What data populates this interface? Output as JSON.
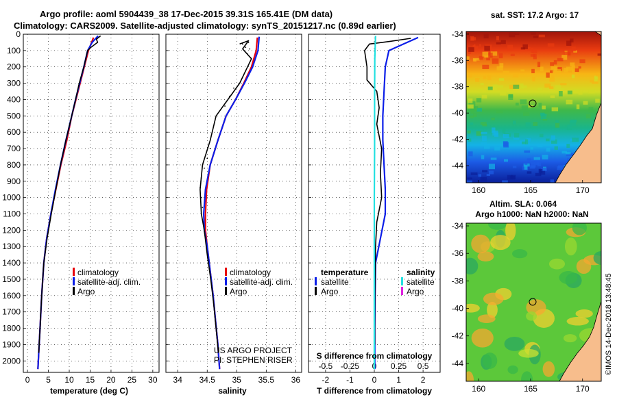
{
  "header": {
    "line1": "Argo profile: aoml 5904439_38 17-Dec-2015 39.31S 165.41E (DM data)",
    "line2": "Climatology: CARS2009. Satellite-adjusted climatology: synTS_20151217.nc (0.89d earlier)"
  },
  "credit": {
    "project": "US ARGO PROJECT",
    "pi": "PI: STEPHEN RISER",
    "imos": "©IMOS 14-Dec-2018 13:48:45"
  },
  "colors": {
    "climatology": "#e8000b",
    "satellite": "#0b1ee8",
    "argo": "#000000",
    "sat_salinity": "#22e0e0",
    "argo_salinity": "#e020e0"
  },
  "chart_data": [
    {
      "id": "temperature",
      "type": "line",
      "xlabel": "temperature (deg C)",
      "ylabel": "",
      "xlim": [
        -1,
        31.5
      ],
      "ylim": [
        2070,
        0
      ],
      "xticks": [
        0,
        5,
        10,
        15,
        20,
        25,
        30
      ],
      "yticks": [
        0,
        100,
        200,
        300,
        400,
        500,
        600,
        700,
        800,
        900,
        1000,
        1100,
        1200,
        1300,
        1400,
        1500,
        1600,
        1700,
        1800,
        1900,
        2000
      ],
      "legend": [
        "climatology",
        "satellite-adj. clim.",
        "Argo"
      ],
      "series": [
        {
          "name": "climatology",
          "color": "#e8000b",
          "points": [
            [
              15.8,
              20
            ],
            [
              15.2,
              60
            ],
            [
              14.6,
              100
            ],
            [
              13.6,
              200
            ],
            [
              12.6,
              300
            ],
            [
              11.6,
              400
            ],
            [
              10.6,
              500
            ],
            [
              9.4,
              650
            ],
            [
              8.0,
              800
            ],
            [
              6.8,
              950
            ],
            [
              5.6,
              1100
            ],
            [
              4.6,
              1250
            ],
            [
              3.9,
              1400
            ],
            [
              3.4,
              1600
            ],
            [
              3.0,
              1800
            ],
            [
              2.7,
              1950
            ],
            [
              2.5,
              2050
            ]
          ]
        },
        {
          "name": "satellite-adj. clim.",
          "color": "#0b1ee8",
          "points": [
            [
              16.9,
              10
            ],
            [
              15.5,
              50
            ],
            [
              14.4,
              100
            ],
            [
              13.5,
              200
            ],
            [
              12.5,
              300
            ],
            [
              11.5,
              400
            ],
            [
              10.4,
              520
            ],
            [
              9.2,
              650
            ],
            [
              7.9,
              800
            ],
            [
              6.7,
              950
            ],
            [
              5.6,
              1100
            ],
            [
              4.6,
              1250
            ],
            [
              3.9,
              1400
            ],
            [
              3.4,
              1600
            ],
            [
              3.0,
              1800
            ],
            [
              2.7,
              1950
            ],
            [
              2.5,
              2050
            ]
          ]
        },
        {
          "name": "Argo",
          "color": "#000000",
          "points": [
            [
              17.5,
              10
            ],
            [
              16.5,
              30
            ],
            [
              16.8,
              50
            ],
            [
              15.2,
              80
            ],
            [
              14.4,
              100
            ],
            [
              13.5,
              200
            ],
            [
              12.4,
              300
            ],
            [
              11.5,
              400
            ],
            [
              10.4,
              520
            ],
            [
              9.2,
              650
            ],
            [
              7.9,
              800
            ],
            [
              6.8,
              950
            ],
            [
              5.7,
              1100
            ],
            [
              4.7,
              1250
            ],
            [
              3.9,
              1400
            ],
            [
              3.4,
              1600
            ],
            [
              3.0,
              1800
            ],
            [
              2.7,
              1950
            ]
          ]
        }
      ]
    },
    {
      "id": "salinity",
      "type": "line",
      "xlabel": "salinity",
      "xlim": [
        33.8,
        36.1
      ],
      "ylim": [
        2070,
        0
      ],
      "xticks": [
        34,
        34.5,
        35,
        35.5,
        36
      ],
      "xticklabels": [
        "34",
        "34.5",
        "35",
        "35.5",
        "36"
      ],
      "legend": [
        "climatology",
        "satellite-adj. clim.",
        "Argo"
      ],
      "series": [
        {
          "name": "climatology",
          "color": "#e8000b",
          "points": [
            [
              35.35,
              20
            ],
            [
              35.33,
              100
            ],
            [
              35.25,
              200
            ],
            [
              35.12,
              300
            ],
            [
              34.98,
              400
            ],
            [
              34.82,
              500
            ],
            [
              34.68,
              650
            ],
            [
              34.55,
              800
            ],
            [
              34.49,
              950
            ],
            [
              34.47,
              1100
            ],
            [
              34.47,
              1200
            ],
            [
              34.5,
              1300
            ],
            [
              34.55,
              1450
            ],
            [
              34.6,
              1600
            ],
            [
              34.64,
              1750
            ],
            [
              34.68,
              1900
            ],
            [
              34.71,
              2050
            ]
          ]
        },
        {
          "name": "satellite-adj. clim.",
          "color": "#0b1ee8",
          "points": [
            [
              35.38,
              15
            ],
            [
              35.36,
              100
            ],
            [
              35.27,
              200
            ],
            [
              35.13,
              300
            ],
            [
              34.98,
              400
            ],
            [
              34.82,
              500
            ],
            [
              34.68,
              650
            ],
            [
              34.55,
              800
            ],
            [
              34.47,
              950
            ],
            [
              34.44,
              1100
            ],
            [
              34.45,
              1200
            ],
            [
              34.5,
              1300
            ],
            [
              34.55,
              1450
            ],
            [
              34.6,
              1600
            ],
            [
              34.64,
              1750
            ],
            [
              34.68,
              1900
            ],
            [
              34.71,
              2050
            ]
          ]
        },
        {
          "name": "Argo",
          "color": "#000000",
          "points": [
            [
              35.05,
              60
            ],
            [
              35.2,
              40
            ],
            [
              35.1,
              90
            ],
            [
              35.25,
              150
            ],
            [
              35.05,
              300
            ],
            [
              34.85,
              400
            ],
            [
              34.65,
              500
            ],
            [
              34.55,
              650
            ],
            [
              34.42,
              800
            ],
            [
              34.38,
              950
            ],
            [
              34.4,
              1100
            ],
            [
              34.45,
              1200
            ],
            [
              34.5,
              1350
            ],
            [
              34.56,
              1500
            ],
            [
              34.61,
              1650
            ],
            [
              34.65,
              1800
            ],
            [
              34.69,
              1950
            ]
          ]
        }
      ]
    },
    {
      "id": "difference",
      "type": "line",
      "xlabel": "T difference from climatology",
      "xlabel2": "S difference from climatology",
      "xlim": [
        -2.7,
        2.7
      ],
      "ylim": [
        2070,
        0
      ],
      "xticks": [
        -2,
        -1,
        0,
        1,
        2
      ],
      "secondary_xticks": [
        -0.5,
        -0.25,
        0,
        0.25,
        0.5
      ],
      "secondary_xticklabels": [
        "-0.5",
        "-0.25",
        "0",
        "0.25",
        "0.5"
      ],
      "legend_temperature_title": "temperature",
      "legend_salinity_title": "salinity",
      "legend": [
        "satellite",
        "Argo"
      ],
      "series": [
        {
          "name": "T satellite",
          "color": "#0b1ee8",
          "points": [
            [
              1.8,
              20
            ],
            [
              1.2,
              60
            ],
            [
              0.6,
              100
            ],
            [
              0.45,
              200
            ],
            [
              0.4,
              350
            ],
            [
              0.35,
              500
            ],
            [
              0.35,
              650
            ],
            [
              0.4,
              800
            ],
            [
              0.45,
              950
            ],
            [
              0.45,
              1100
            ],
            [
              0.25,
              1250
            ],
            [
              0.05,
              1400
            ],
            [
              0.03,
              1600
            ],
            [
              0.02,
              1800
            ],
            [
              0.02,
              2050
            ]
          ]
        },
        {
          "name": "T Argo",
          "color": "#000000",
          "points": [
            [
              1.5,
              25
            ],
            [
              0.6,
              45
            ],
            [
              -0.2,
              60
            ],
            [
              -0.4,
              100
            ],
            [
              -0.3,
              200
            ],
            [
              -0.3,
              280
            ],
            [
              0.1,
              350
            ],
            [
              0.2,
              450
            ],
            [
              0.1,
              550
            ],
            [
              0.3,
              700
            ],
            [
              0.25,
              850
            ],
            [
              0.3,
              1000
            ],
            [
              0.1,
              1150
            ],
            [
              0.05,
              1300
            ],
            [
              0.03,
              1500
            ],
            [
              0.02,
              1700
            ],
            [
              0.02,
              1900
            ]
          ]
        },
        {
          "name": "S satellite",
          "color": "#22e0e0",
          "points": [
            [
              0.05,
              10
            ],
            [
              0.02,
              150
            ],
            [
              0.01,
              400
            ],
            [
              0.01,
              700
            ],
            [
              0.0,
              1000
            ],
            [
              0.0,
              1300
            ],
            [
              0.0,
              1600
            ],
            [
              0.0,
              2050
            ]
          ]
        },
        {
          "name": "S Argo",
          "color": "#e020e0",
          "points": []
        }
      ]
    },
    {
      "id": "sst_map",
      "type": "heatmap",
      "title": "sat. SST: 17.2 Argo: 17",
      "xlim": [
        158.8,
        171.8
      ],
      "ylim": [
        -45.3,
        -33.8
      ],
      "xticks": [
        160,
        165,
        170
      ],
      "yticks": [
        -34,
        -36,
        -38,
        -40,
        -42,
        -44
      ],
      "marker": [
        165.41,
        -39.31
      ]
    },
    {
      "id": "sla_map",
      "type": "heatmap",
      "title": "Altim. SLA: 0.064",
      "title2": "Argo h1000: NaN h2000: NaN",
      "xlim": [
        158.8,
        171.8
      ],
      "ylim": [
        -45.3,
        -33.8
      ],
      "xticks": [
        160,
        165,
        170
      ],
      "yticks": [
        -34,
        -36,
        -38,
        -40,
        -42,
        -44
      ],
      "marker": [
        165.41,
        -39.31
      ]
    }
  ]
}
